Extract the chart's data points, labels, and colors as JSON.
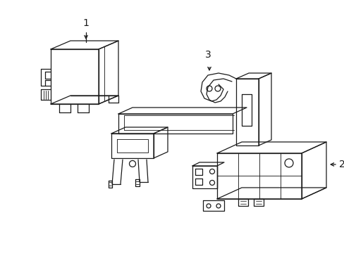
{
  "background_color": "#ffffff",
  "line_color": "#1a1a1a",
  "line_width": 0.9,
  "labels": [
    "1",
    "2",
    "3"
  ],
  "label_fontsize": 10,
  "fig_width": 4.89,
  "fig_height": 3.6,
  "dpi": 100
}
